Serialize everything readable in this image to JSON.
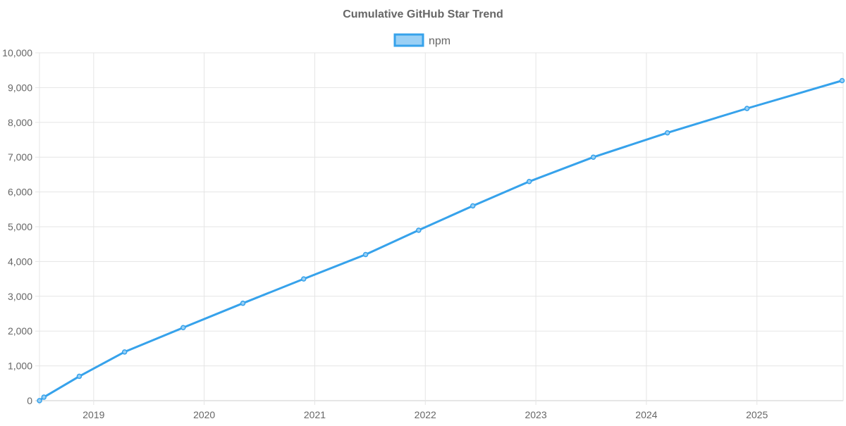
{
  "chart_data": {
    "type": "line",
    "title": "Cumulative GitHub Star Trend",
    "xlabel": "",
    "ylabel": "",
    "xlim": [
      2018.51,
      2025.78
    ],
    "ylim": [
      0,
      10000
    ],
    "grid": true,
    "legend_position": "top",
    "x_ticks": [
      2019,
      2020,
      2021,
      2022,
      2023,
      2024,
      2025
    ],
    "x_tick_labels": [
      "2019",
      "2020",
      "2021",
      "2022",
      "2023",
      "2024",
      "2025"
    ],
    "y_ticks": [
      0,
      1000,
      2000,
      3000,
      4000,
      5000,
      6000,
      7000,
      8000,
      9000,
      10000
    ],
    "y_tick_labels": [
      "0",
      "1,000",
      "2,000",
      "3,000",
      "4,000",
      "5,000",
      "6,000",
      "7,000",
      "8,000",
      "9,000",
      "10,000"
    ],
    "series": [
      {
        "name": "npm",
        "color": "#36a2eb",
        "fill": "#9ad0f5",
        "x": [
          2018.51,
          2018.55,
          2018.87,
          2019.28,
          2019.81,
          2020.35,
          2020.9,
          2021.46,
          2021.94,
          2022.43,
          2022.94,
          2023.52,
          2024.19,
          2024.91,
          2025.77
        ],
        "values": [
          0,
          100,
          700,
          1400,
          2100,
          2800,
          3500,
          4200,
          4900,
          5600,
          6300,
          7000,
          7700,
          8400,
          9200
        ]
      }
    ]
  }
}
